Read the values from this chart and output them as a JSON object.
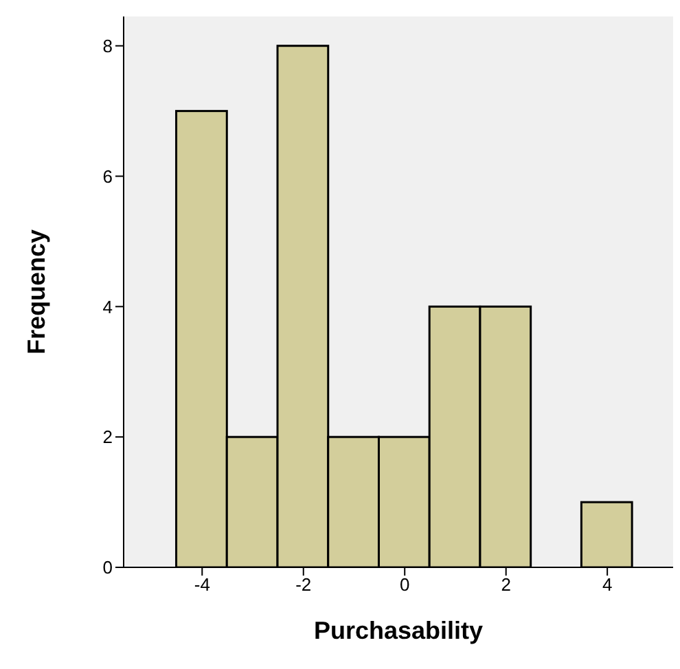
{
  "chart_data": {
    "type": "histogram",
    "xlabel": "Purchasability",
    "ylabel": "Frequency",
    "bins": [
      -4.5,
      -3.5,
      -2.5,
      -1.5,
      -0.5,
      0.5,
      1.5,
      2.5,
      3.5,
      4.5
    ],
    "values": [
      7,
      2,
      8,
      2,
      2,
      4,
      4,
      0,
      1
    ],
    "color": "#d3ce9b",
    "xlim": [
      -5.55,
      5.3
    ],
    "xticks": [
      -4,
      -2,
      0,
      2,
      4
    ],
    "ylim": [
      0,
      8.45
    ],
    "yticks": [
      0,
      2,
      4,
      6,
      8
    ],
    "grid": false
  }
}
